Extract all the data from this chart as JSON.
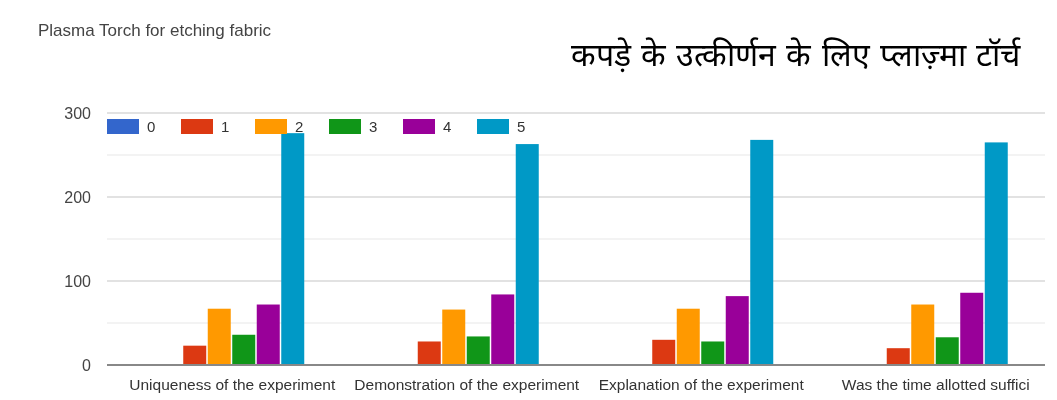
{
  "chart_data": {
    "type": "bar",
    "title": "Plasma Torch for etching fabric",
    "subtitle": "कपड़े के उत्कीर्णन के लिए प्लाज़्मा टॉर्च",
    "categories": [
      "Uniqueness of the experiment",
      "Demonstration of the experiment",
      "Explanation of the experiment",
      "Was the time allotted suffici"
    ],
    "series": [
      {
        "name": "0",
        "color": "#3366cc",
        "values": [
          1,
          1,
          1,
          1
        ]
      },
      {
        "name": "1",
        "color": "#dc3912",
        "values": [
          23,
          28,
          30,
          20
        ]
      },
      {
        "name": "2",
        "color": "#ff9900",
        "values": [
          67,
          66,
          67,
          72
        ]
      },
      {
        "name": "3",
        "color": "#109618",
        "values": [
          36,
          34,
          28,
          33
        ]
      },
      {
        "name": "4",
        "color": "#990099",
        "values": [
          72,
          84,
          82,
          86
        ]
      },
      {
        "name": "5",
        "color": "#0099c6",
        "values": [
          276,
          263,
          268,
          265
        ]
      }
    ],
    "ylim": [
      0,
      300
    ],
    "yticks": [
      0,
      {
        "value": 50,
        "label": null
      },
      100,
      {
        "value": 150,
        "label": null
      },
      200,
      {
        "value": 250,
        "label": null
      },
      300
    ],
    "grid": "y",
    "legend": "top left"
  }
}
